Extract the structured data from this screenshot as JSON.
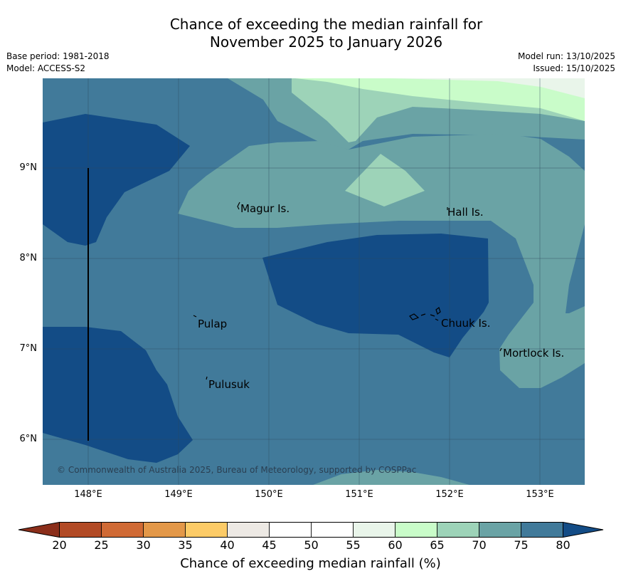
{
  "title": {
    "line1": "Chance of exceeding the median rainfall for",
    "line2": "November 2025 to January 2026"
  },
  "meta": {
    "base_period": "Base period: 1981-2018",
    "model": "Model: ACCESS-S2",
    "model_run": "Model run: 13/10/2025",
    "issued": "Issued: 15/10/2025"
  },
  "axes": {
    "lat_labels": [
      "9°N",
      "8°N",
      "7°N",
      "6°N"
    ],
    "lon_labels": [
      "148°E",
      "149°E",
      "150°E",
      "151°E",
      "152°E",
      "153°E"
    ]
  },
  "places": {
    "magur": "Magur Is.",
    "hall": "Hall Is.",
    "pulap": "Pulap",
    "chuuk": "Chuuk Is.",
    "mortlock": "Mortlock Is.",
    "pulusuk": "Pulusuk"
  },
  "copyright": "© Commonwealth of Australia 2025, Bureau of Meteorology, supported by COSPPac",
  "colorbar": {
    "ticks": [
      "20",
      "25",
      "30",
      "35",
      "40",
      "45",
      "50",
      "55",
      "60",
      "65",
      "70",
      "75",
      "80"
    ],
    "label": "Chance of exceeding median rainfall (%)",
    "colors": {
      "lt20": "#8b2e1a",
      "b20_25": "#b24a25",
      "b25_30": "#d06a35",
      "b30_35": "#e39849",
      "b35_40": "#fccb67",
      "b40_45": "#ede9e4",
      "b45_50": "#ffffff",
      "b50_55": "#ffffff",
      "b55_60": "#e9f5ea",
      "b60_65": "#c9fcc9",
      "b65_70": "#9dd3b8",
      "b70_75": "#6aa3a5",
      "b75_80": "#417a9a",
      "gt80": "#134c86"
    }
  }
}
